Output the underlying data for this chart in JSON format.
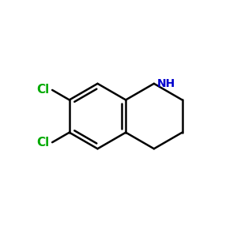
{
  "background": "#ffffff",
  "bond_color": "#000000",
  "cl_color": "#00aa00",
  "nh_color": "#0000cd",
  "cl_label_1": "Cl",
  "cl_label_2": "Cl",
  "nh_label": "NH",
  "figsize": [
    3.0,
    3.0
  ],
  "dpi": 100,
  "lw": 1.8
}
